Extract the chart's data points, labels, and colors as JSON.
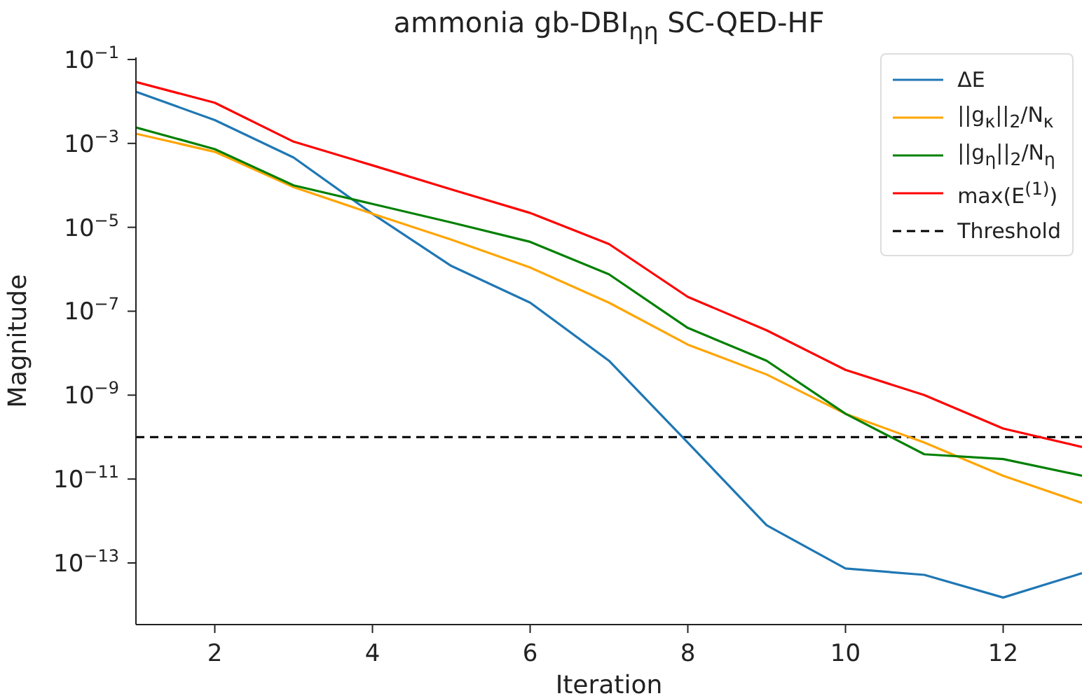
{
  "chart_data": {
    "type": "line",
    "title": "ammonia gb-DBI$_{ηη}$ SC-QED-HF",
    "xlabel": "Iteration",
    "ylabel": "Magnitude",
    "x": [
      1,
      2,
      3,
      4,
      5,
      6,
      7,
      8,
      9,
      10,
      11,
      12,
      13
    ],
    "series": [
      {
        "name": "ΔE",
        "color": "#1f77b4",
        "values": [
          0.017,
          0.0036,
          0.00046,
          2.1e-05,
          1.2e-06,
          1.6e-07,
          6.6e-09,
          7.4e-11,
          7.9e-13,
          7.4e-14,
          5.2e-14,
          1.5e-14,
          5.7e-14
        ]
      },
      {
        "name": "||g$_{κ}$||$_{2}$/N$_{κ}$",
        "color": "#ffa500",
        "values": [
          0.0017,
          0.00063,
          9.1e-05,
          2.1e-05,
          5.1e-06,
          1.1e-06,
          1.6e-07,
          1.6e-08,
          3.1e-09,
          3.6e-10,
          7.4e-11,
          1.2e-11,
          2.7e-12
        ]
      },
      {
        "name": "||g$_{η}$||$_{2}$/N$_{η}$",
        "color": "#008000",
        "values": [
          0.0024,
          0.00073,
          0.0001,
          3.6e-05,
          1.3e-05,
          4.5e-06,
          7.6e-07,
          4e-08,
          6.6e-09,
          3.6e-10,
          3.9e-11,
          3e-11,
          1.2e-11
        ]
      },
      {
        "name": "max(E$^{(1)}$)",
        "color": "#ff0000",
        "values": [
          0.029,
          0.0093,
          0.0011,
          0.0003,
          8e-05,
          2.2e-05,
          4e-06,
          2.2e-07,
          3.5e-08,
          4e-09,
          1e-09,
          1.6e-10,
          5.8e-11
        ]
      }
    ],
    "ref_lines": [
      {
        "axis": "y",
        "value": 1e-10,
        "label": "Threshold",
        "color": "#000000",
        "line_style": "dashed"
      }
    ],
    "log": "y",
    "xlim": [
      1,
      13
    ],
    "xticks": [
      2,
      4,
      6,
      8,
      10,
      12
    ],
    "ylim": [
      3.4e-15,
      0.112
    ],
    "yticks": [
      {
        "value": 0.1,
        "label": "10$^{−1}$"
      },
      {
        "value": 0.001,
        "label": "10$^{−3}$"
      },
      {
        "value": 1e-05,
        "label": "10$^{−5}$"
      },
      {
        "value": 1e-07,
        "label": "10$^{−7}$"
      },
      {
        "value": 1e-09,
        "label": "10$^{−9}$"
      },
      {
        "value": 1e-11,
        "label": "10$^{−11}$"
      },
      {
        "value": 1e-13,
        "label": "10$^{−13}$"
      }
    ],
    "grid": false,
    "legend": "top right",
    "marker": "none",
    "line_style": "solid"
  }
}
